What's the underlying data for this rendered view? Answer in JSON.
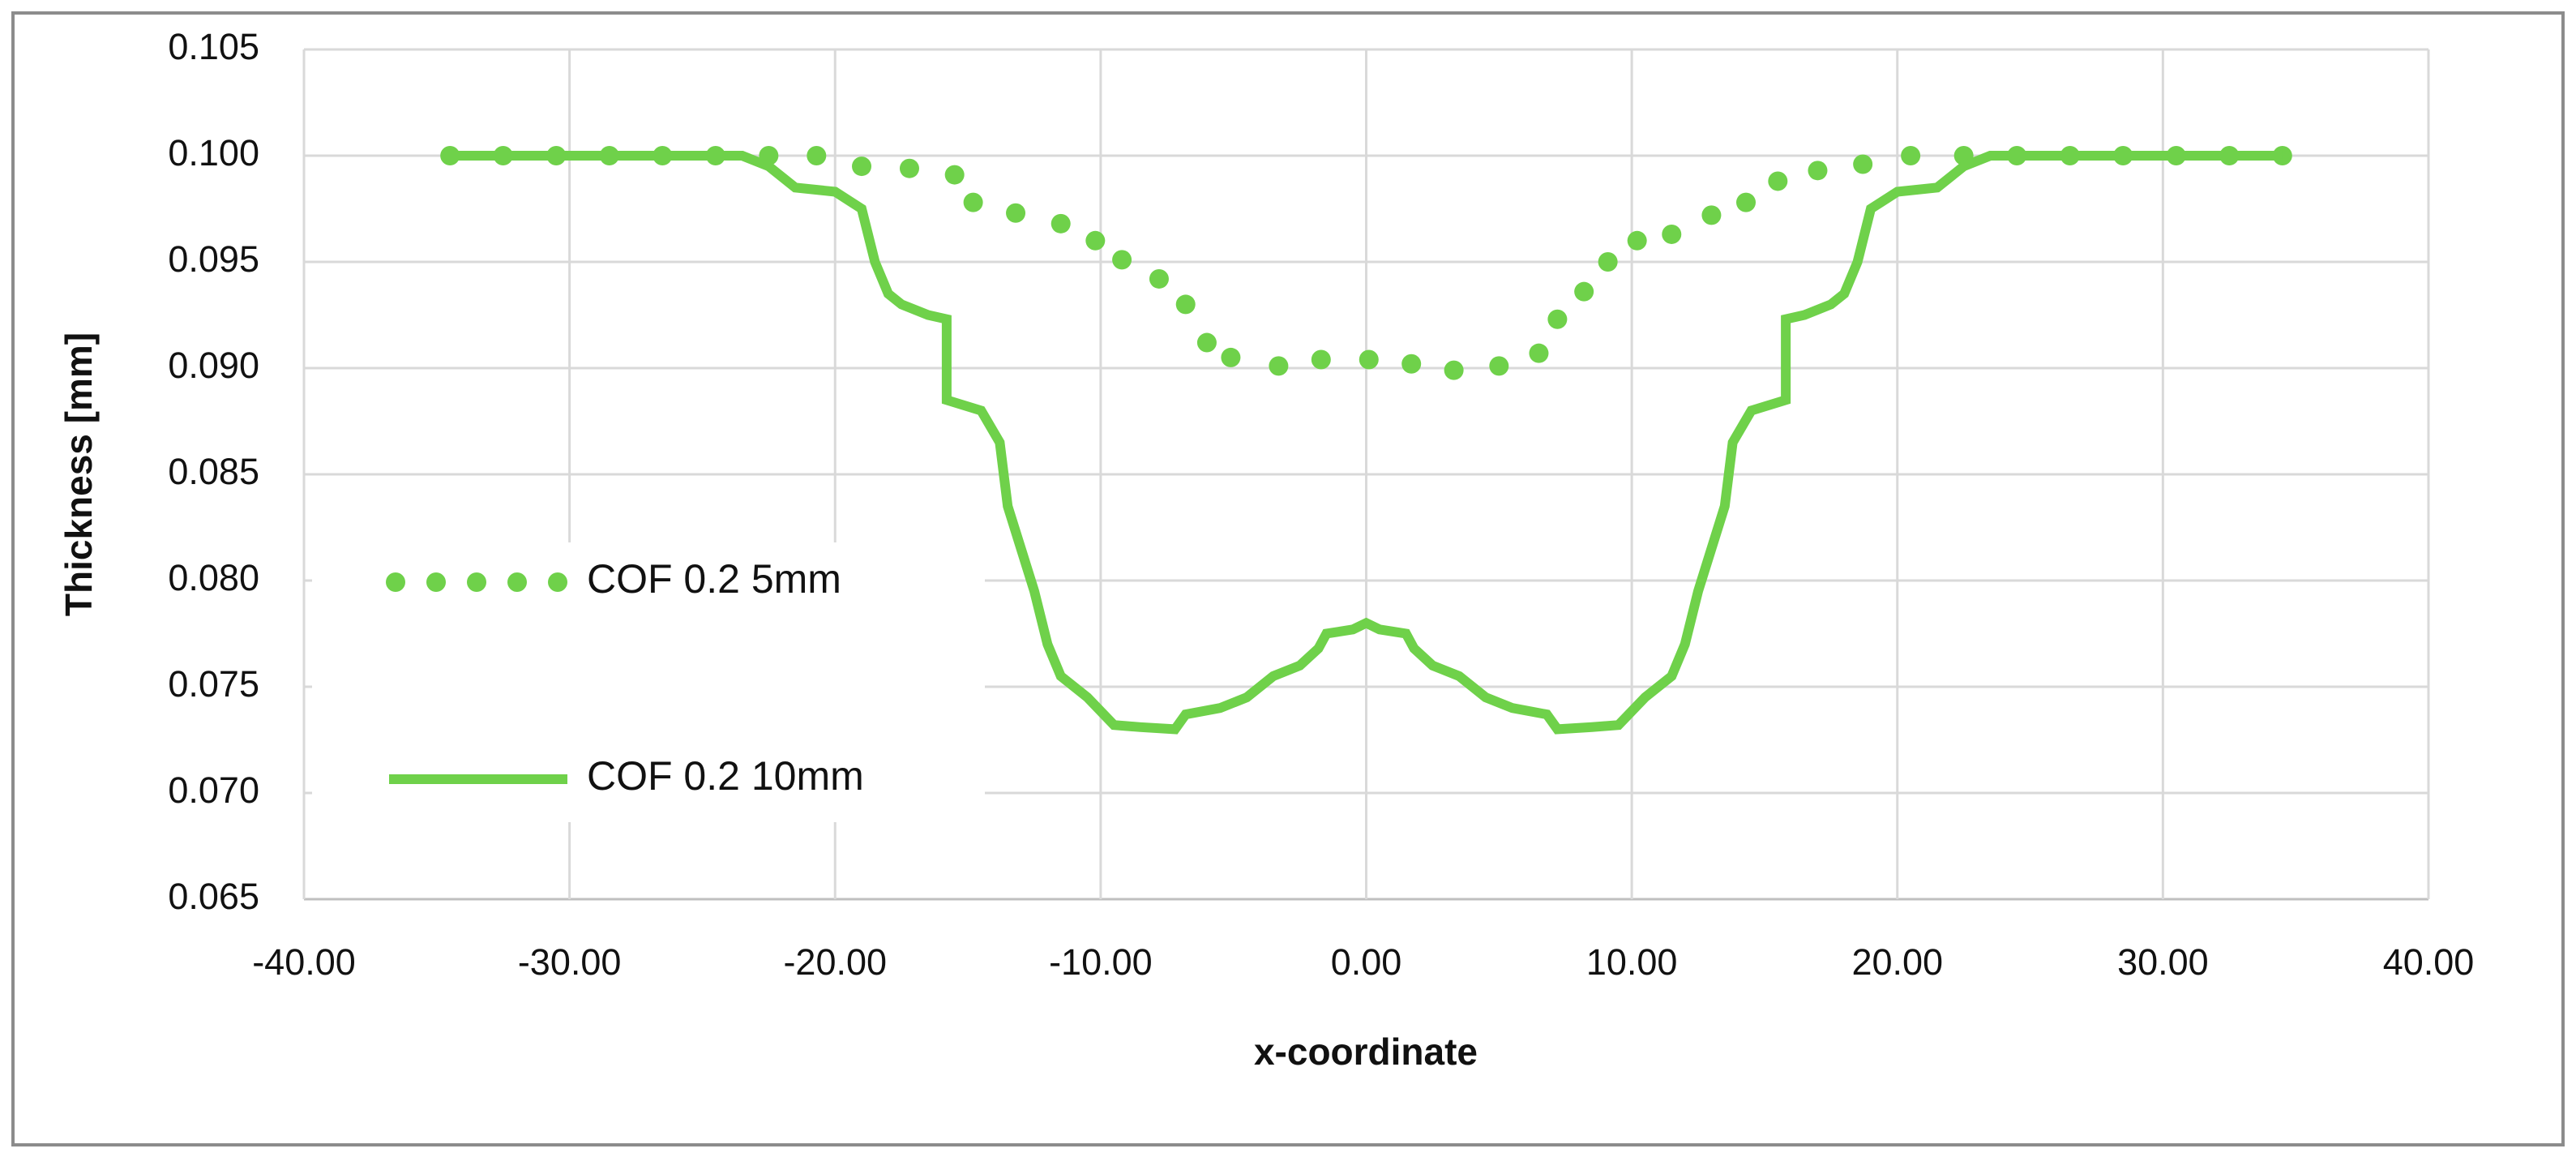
{
  "chart_data": {
    "type": "line",
    "x_label": "x-coordinate",
    "y_label": "Thickness [mm]",
    "xlim": [
      -40,
      40
    ],
    "xticks": [
      {
        "value": -40,
        "label": "-40.00"
      },
      {
        "value": -30,
        "label": "-30.00"
      },
      {
        "value": -20,
        "label": "-20.00"
      },
      {
        "value": -10,
        "label": "-10.00"
      },
      {
        "value": 0,
        "label": "0.00"
      },
      {
        "value": 10,
        "label": "10.00"
      },
      {
        "value": 20,
        "label": "20.00"
      },
      {
        "value": 30,
        "label": "30.00"
      },
      {
        "value": 40,
        "label": "40.00"
      }
    ],
    "ylim": [
      0.065,
      0.105
    ],
    "yticks": [
      0.065,
      {
        "value": 0.07,
        "label": "0.070"
      },
      0.075,
      {
        "value": 0.08,
        "label": "0.080"
      },
      0.085,
      {
        "value": 0.09,
        "label": "0.090"
      },
      0.095,
      {
        "value": 0.1,
        "label": "0.100"
      },
      0.105
    ],
    "grid": true,
    "legend": "left",
    "series": [
      {
        "name": "COF 0.2 5mm",
        "color": "#6fd14a",
        "style": "dotted",
        "x": [
          -34.5,
          -32.5,
          -30.5,
          -28.5,
          -26.5,
          -24.5,
          -22.5,
          -20.7,
          -19.0,
          -17.2,
          -15.5,
          -14.8,
          -13.2,
          -11.5,
          -10.2,
          -9.2,
          -7.8,
          -6.8,
          -6.0,
          -5.1,
          -3.3,
          -1.7,
          0.1,
          1.7,
          3.3,
          5.0,
          6.5,
          7.2,
          8.2,
          9.1,
          10.2,
          11.5,
          13.0,
          14.3,
          15.5,
          17.0,
          18.7,
          20.5,
          22.5,
          24.5,
          26.5,
          28.5,
          30.5,
          32.5,
          34.5
        ],
        "values": [
          0.1,
          0.1,
          0.1,
          0.1,
          0.1,
          0.1,
          0.1,
          0.1,
          0.0995,
          0.0994,
          0.0991,
          0.0978,
          0.0973,
          0.0968,
          0.096,
          0.0951,
          0.0942,
          0.093,
          0.0912,
          0.0905,
          0.0901,
          0.0904,
          0.0904,
          0.0902,
          0.0899,
          0.0901,
          0.0907,
          0.0923,
          0.0936,
          0.095,
          0.096,
          0.0963,
          0.0972,
          0.0978,
          0.0988,
          0.0993,
          0.0996,
          0.1,
          0.1,
          0.1,
          0.1,
          0.1,
          0.1,
          0.1,
          0.1
        ]
      },
      {
        "name": "COF 0.2 10mm",
        "color": "#6fd14a",
        "style": "solid",
        "x": [
          -34.5,
          -23.5,
          -22.5,
          -21.5,
          -20,
          -19,
          -18.5,
          -18,
          -17.5,
          -16.5,
          -15.8,
          -15.8,
          -14.5,
          -13.8,
          -13.5,
          -13,
          -12.5,
          -12,
          -11.5,
          -10.5,
          -9.5,
          -8.5,
          -7.2,
          -6.8,
          -5.5,
          -4.5,
          -3.5,
          -2.5,
          -1.8,
          -1.5,
          -0.5,
          0,
          0.5,
          1.5,
          1.8,
          2.5,
          3.5,
          4.5,
          5.5,
          6.8,
          7.2,
          8.5,
          9.5,
          10.5,
          11.5,
          12,
          12.5,
          13,
          13.5,
          13.8,
          14.5,
          15.8,
          15.8,
          16.5,
          17.5,
          18,
          18.5,
          19,
          20,
          21.5,
          22.5,
          23.5,
          34.5
        ],
        "values": [
          0.1,
          0.1,
          0.0995,
          0.0985,
          0.0983,
          0.0975,
          0.095,
          0.0935,
          0.093,
          0.0925,
          0.0923,
          0.0885,
          0.088,
          0.0865,
          0.0835,
          0.0815,
          0.0795,
          0.077,
          0.0755,
          0.0745,
          0.0732,
          0.0731,
          0.073,
          0.0737,
          0.074,
          0.0745,
          0.0755,
          0.076,
          0.0768,
          0.0775,
          0.0777,
          0.078,
          0.0777,
          0.0775,
          0.0768,
          0.076,
          0.0755,
          0.0745,
          0.074,
          0.0737,
          0.073,
          0.0731,
          0.0732,
          0.0745,
          0.0755,
          0.077,
          0.0795,
          0.0815,
          0.0835,
          0.0865,
          0.088,
          0.0885,
          0.0923,
          0.0925,
          0.093,
          0.0935,
          0.095,
          0.0975,
          0.0983,
          0.0985,
          0.0995,
          0.1,
          0.1
        ]
      }
    ]
  }
}
